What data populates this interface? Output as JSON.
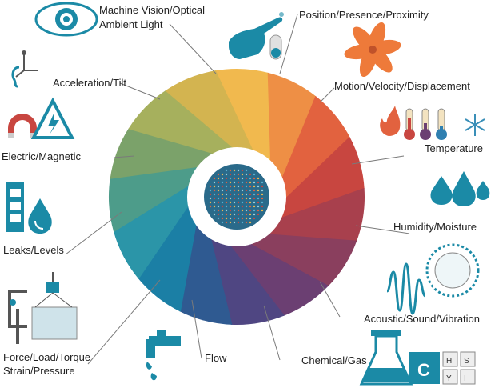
{
  "labels": {
    "machine_vision_1": "Machine Vision/Optical",
    "machine_vision_2": "Ambient Light",
    "position": "Position/Presence/Proximity",
    "motion": "Motion/Velocity/Displacement",
    "temperature": "Temperature",
    "humidity": "Humidity/Moisture",
    "acoustic": "Acoustic/Sound/Vibration",
    "chemical": "Chemical/Gas",
    "flow": "Flow",
    "force_1": "Force/Load/Torque",
    "force_2": "Strain/Pressure",
    "leaks": "Leaks/Levels",
    "electric": "Electric/Magnetic",
    "acceleration": "Acceleration/Tilt"
  },
  "icon_text": {
    "flask_letter": "C",
    "periodic": [
      "H",
      "S",
      "Y",
      "I"
    ]
  },
  "colors": {
    "teal": "#1b8aa6",
    "label": "#222222",
    "leader": "#7a7a7a"
  },
  "wheel_colors": [
    "#f1b94e",
    "#ee8f45",
    "#e2623f",
    "#c84640",
    "#a8404d",
    "#8a3f5e",
    "#6b3f72",
    "#4f4682",
    "#2f5a91",
    "#1b7fa5",
    "#2b95a8",
    "#4d9c8a",
    "#7ba26a",
    "#a6b05d",
    "#d3b450"
  ],
  "icons": [
    "eye-icon",
    "pointing-hand-icon",
    "toggle-switch-icon",
    "fan-icon",
    "flame-icon",
    "thermometer-icon",
    "snowflake-icon",
    "droplets-icon",
    "sound-wave-icon",
    "vibrating-ball-icon",
    "flask-icon",
    "periodic-table-icon",
    "faucet-icon",
    "crane-weight-icon",
    "clamp-icon",
    "tank-level-icon",
    "water-drop-icon",
    "horseshoe-magnet-icon",
    "high-voltage-icon",
    "axes-icon",
    "ear-icon"
  ]
}
